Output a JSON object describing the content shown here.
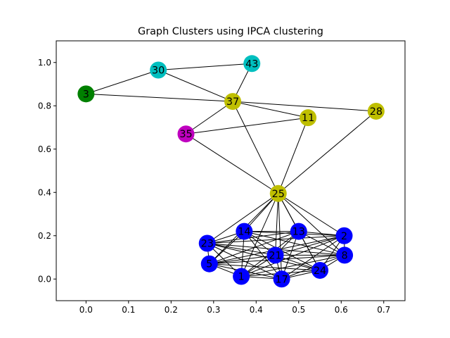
{
  "chart_data": {
    "type": "network",
    "title": "Graph Clusters using IPCA clustering",
    "xlabel": "",
    "ylabel": "",
    "xlim": [
      -0.07,
      0.75
    ],
    "ylim": [
      -0.1,
      1.1
    ],
    "x_ticks": [
      0.0,
      0.1,
      0.2,
      0.3,
      0.4,
      0.5,
      0.6,
      0.7
    ],
    "y_ticks": [
      0.0,
      0.2,
      0.4,
      0.6,
      0.8,
      1.0
    ],
    "grid": false,
    "colors": {
      "blue": "#0000ff",
      "olive": "#bfbf00",
      "teal": "#00bfbf",
      "green": "#008000",
      "magenta": "#bf00bf",
      "edge": "#000000"
    },
    "nodes": [
      {
        "id": "3",
        "x": 0.0,
        "y": 0.855,
        "color": "green"
      },
      {
        "id": "30",
        "x": 0.17,
        "y": 0.965,
        "color": "teal"
      },
      {
        "id": "43",
        "x": 0.39,
        "y": 0.995,
        "color": "teal"
      },
      {
        "id": "37",
        "x": 0.345,
        "y": 0.82,
        "color": "olive"
      },
      {
        "id": "11",
        "x": 0.522,
        "y": 0.745,
        "color": "olive"
      },
      {
        "id": "28",
        "x": 0.682,
        "y": 0.775,
        "color": "olive"
      },
      {
        "id": "35",
        "x": 0.235,
        "y": 0.67,
        "color": "magenta"
      },
      {
        "id": "25",
        "x": 0.452,
        "y": 0.395,
        "color": "olive"
      },
      {
        "id": "14",
        "x": 0.372,
        "y": 0.22,
        "color": "blue"
      },
      {
        "id": "13",
        "x": 0.5,
        "y": 0.22,
        "color": "blue"
      },
      {
        "id": "2",
        "x": 0.607,
        "y": 0.2,
        "color": "blue"
      },
      {
        "id": "23",
        "x": 0.285,
        "y": 0.165,
        "color": "blue"
      },
      {
        "id": "21",
        "x": 0.445,
        "y": 0.11,
        "color": "blue"
      },
      {
        "id": "8",
        "x": 0.608,
        "y": 0.11,
        "color": "blue"
      },
      {
        "id": "5",
        "x": 0.29,
        "y": 0.07,
        "color": "blue"
      },
      {
        "id": "24",
        "x": 0.55,
        "y": 0.04,
        "color": "blue"
      },
      {
        "id": "1",
        "x": 0.365,
        "y": 0.012,
        "color": "blue"
      },
      {
        "id": "17",
        "x": 0.46,
        "y": 0.0,
        "color": "blue"
      }
    ],
    "edges": [
      [
        "3",
        "30"
      ],
      [
        "3",
        "37"
      ],
      [
        "30",
        "43"
      ],
      [
        "30",
        "37"
      ],
      [
        "43",
        "37"
      ],
      [
        "37",
        "11"
      ],
      [
        "37",
        "28"
      ],
      [
        "37",
        "35"
      ],
      [
        "37",
        "25"
      ],
      [
        "35",
        "11"
      ],
      [
        "35",
        "25"
      ],
      [
        "11",
        "25"
      ],
      [
        "28",
        "25"
      ],
      [
        "25",
        "14"
      ],
      [
        "25",
        "13"
      ],
      [
        "25",
        "2"
      ],
      [
        "25",
        "23"
      ],
      [
        "25",
        "21"
      ],
      [
        "25",
        "8"
      ],
      [
        "25",
        "5"
      ],
      [
        "25",
        "24"
      ],
      [
        "25",
        "1"
      ],
      [
        "25",
        "17"
      ],
      [
        "14",
        "13"
      ],
      [
        "14",
        "2"
      ],
      [
        "14",
        "23"
      ],
      [
        "14",
        "21"
      ],
      [
        "14",
        "8"
      ],
      [
        "14",
        "5"
      ],
      [
        "14",
        "24"
      ],
      [
        "14",
        "1"
      ],
      [
        "14",
        "17"
      ],
      [
        "13",
        "2"
      ],
      [
        "13",
        "23"
      ],
      [
        "13",
        "21"
      ],
      [
        "13",
        "8"
      ],
      [
        "13",
        "5"
      ],
      [
        "13",
        "24"
      ],
      [
        "13",
        "1"
      ],
      [
        "13",
        "17"
      ],
      [
        "2",
        "23"
      ],
      [
        "2",
        "21"
      ],
      [
        "2",
        "8"
      ],
      [
        "2",
        "5"
      ],
      [
        "2",
        "24"
      ],
      [
        "2",
        "1"
      ],
      [
        "2",
        "17"
      ],
      [
        "23",
        "21"
      ],
      [
        "23",
        "8"
      ],
      [
        "23",
        "5"
      ],
      [
        "23",
        "24"
      ],
      [
        "23",
        "1"
      ],
      [
        "23",
        "17"
      ],
      [
        "21",
        "8"
      ],
      [
        "21",
        "5"
      ],
      [
        "21",
        "24"
      ],
      [
        "21",
        "1"
      ],
      [
        "21",
        "17"
      ],
      [
        "8",
        "5"
      ],
      [
        "8",
        "24"
      ],
      [
        "8",
        "1"
      ],
      [
        "8",
        "17"
      ],
      [
        "5",
        "24"
      ],
      [
        "5",
        "1"
      ],
      [
        "5",
        "17"
      ],
      [
        "24",
        "1"
      ],
      [
        "24",
        "17"
      ],
      [
        "1",
        "17"
      ]
    ]
  }
}
